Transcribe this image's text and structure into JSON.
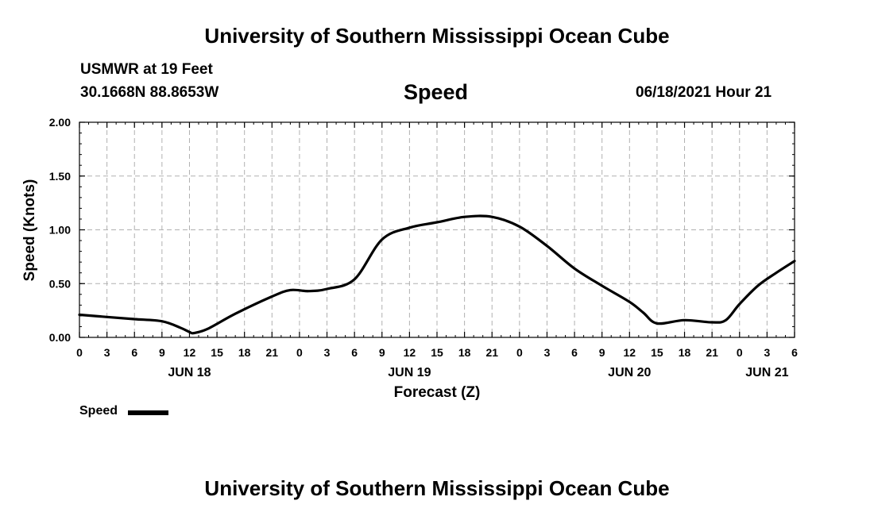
{
  "header": {
    "title": "University of Southern Mississippi Ocean Cube",
    "station": "USMWR at 19 Feet",
    "coords": "30.1668N  88.8653W",
    "variable": "Speed",
    "date": "06/18/2021 Hour 21"
  },
  "footer": {
    "title": "University of Southern Mississippi Ocean Cube"
  },
  "legend": {
    "label": "Speed"
  },
  "colors": {
    "line": "#000000",
    "grid": "#b0b0b0"
  },
  "chart_data": {
    "type": "line",
    "title": "Speed",
    "xlabel": "Forecast (Z)",
    "ylabel": "Speed (Knots)",
    "ylim": [
      0,
      2
    ],
    "xlim_hours": [
      0,
      78
    ],
    "grid": true,
    "x_tick_labels": [
      "0",
      "3",
      "6",
      "9",
      "12",
      "15",
      "18",
      "21",
      "0",
      "3",
      "6",
      "9",
      "12",
      "15",
      "18",
      "21",
      "0",
      "3",
      "6",
      "9",
      "12",
      "15",
      "18",
      "21",
      "0",
      "3",
      "6"
    ],
    "y_tick_labels": [
      "0.00",
      "0.50",
      "1.00",
      "1.50",
      "2.00"
    ],
    "y_tick_values": [
      0,
      0.5,
      1.0,
      1.5,
      2.0
    ],
    "date_labels": [
      {
        "label": "JUN 18",
        "hour": 12
      },
      {
        "label": "JUN 19",
        "hour": 36
      },
      {
        "label": "JUN 20",
        "hour": 60
      },
      {
        "label": "JUN 21",
        "hour": 75
      }
    ],
    "series": [
      {
        "name": "Speed",
        "x_hours": [
          0,
          3,
          6,
          9,
          11,
          12,
          12.5,
          14,
          17,
          21,
          23,
          25,
          27,
          30,
          33,
          36,
          39,
          42,
          45,
          48,
          51,
          54,
          57,
          60,
          61.5,
          63,
          66,
          69,
          70.5,
          72,
          74,
          76,
          78
        ],
        "values": [
          0.21,
          0.19,
          0.17,
          0.15,
          0.09,
          0.05,
          0.04,
          0.08,
          0.22,
          0.38,
          0.44,
          0.43,
          0.45,
          0.54,
          0.91,
          1.02,
          1.07,
          1.12,
          1.12,
          1.03,
          0.85,
          0.64,
          0.48,
          0.33,
          0.23,
          0.13,
          0.16,
          0.14,
          0.16,
          0.31,
          0.48,
          0.6,
          0.71
        ]
      }
    ]
  }
}
